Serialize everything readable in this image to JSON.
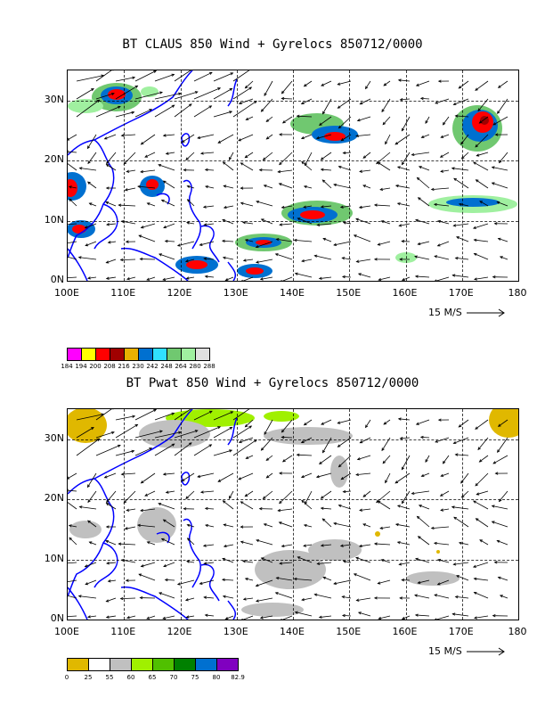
{
  "panel1": {
    "title": "BT CLAUS 850 Wind + Gyrelocs 850712/0000",
    "scale_label": "15 M/S",
    "legend": {
      "colors": [
        "#ff00ff",
        "#ffff00",
        "#ff0000",
        "#a00000",
        "#e8b000",
        "#0070d0",
        "#30e0ff",
        "#70c870",
        "#a0f0a0",
        "#e0e0e0"
      ],
      "labels": [
        "184",
        "194",
        "200",
        "208",
        "216",
        "230",
        "242",
        "248",
        "264",
        "280",
        "288"
      ]
    }
  },
  "panel2": {
    "title": "BT Pwat 850 Wind + Gyrelocs 850712/0000",
    "scale_label": "15 M/S",
    "legend": {
      "colors": [
        "#e0b800",
        "#ffffff",
        "#c0c0c0",
        "#a0f000",
        "#50c000",
        "#008000",
        "#0070d0",
        "#8000c0"
      ],
      "labels": [
        "0",
        "25",
        "55",
        "60",
        "65",
        "70",
        "75",
        "80",
        "82.9"
      ]
    }
  },
  "axes": {
    "x_ticks": [
      "100E",
      "110E",
      "120E",
      "130E",
      "140E",
      "150E",
      "160E",
      "170E",
      "180"
    ],
    "y_ticks": [
      "0N",
      "10N",
      "20N",
      "30N"
    ]
  },
  "colors": {
    "coastline": "#0000ff",
    "vector": "#000000"
  }
}
